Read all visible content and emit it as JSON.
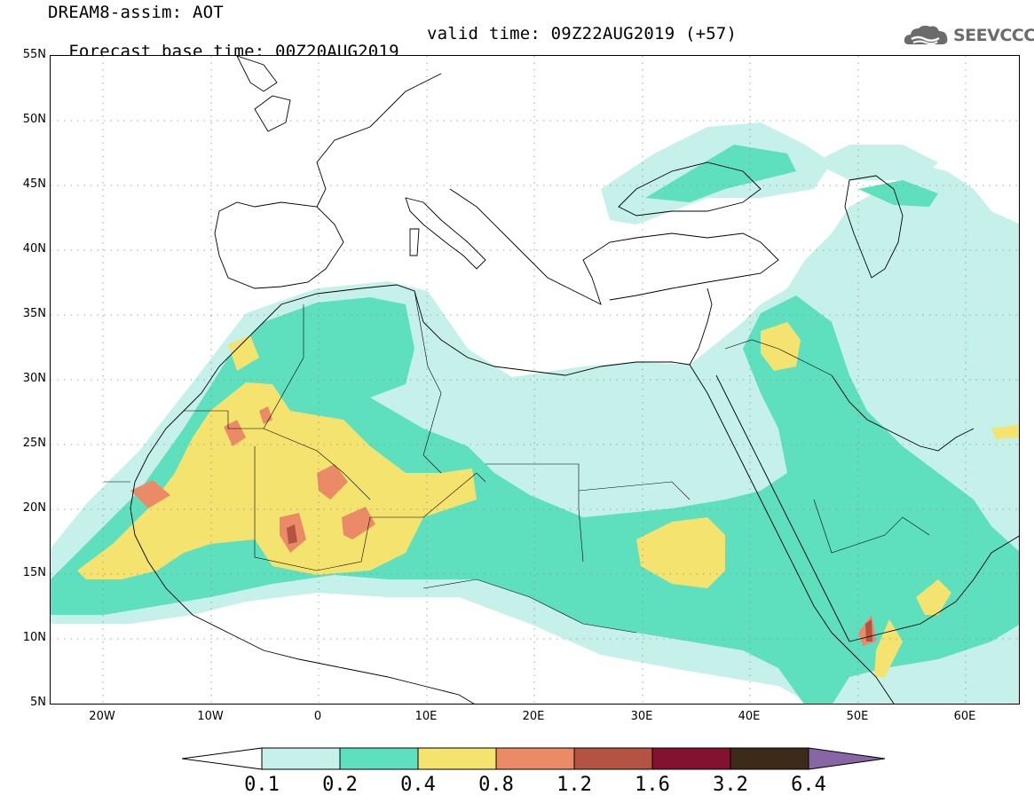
{
  "header": {
    "title": "DREAM8-assim: AOT",
    "base_time": "Forecast base time: 00Z20AUG2019",
    "valid_time": "valid time: 09Z22AUG2019 (+57)"
  },
  "logo": {
    "text": "SEEVCCC",
    "icon": "cloud-icon",
    "color": "#6b6b6b"
  },
  "map": {
    "lat_labels": [
      "55N",
      "50N",
      "45N",
      "40N",
      "35N",
      "30N",
      "25N",
      "20N",
      "15N",
      "10N",
      "5N"
    ],
    "lon_labels": [
      "20W",
      "10W",
      "0",
      "10E",
      "20E",
      "30E",
      "40E",
      "50E",
      "60E"
    ],
    "gridlines": "dotted",
    "coastline_color": "#000000"
  },
  "colorbar": {
    "levels": [
      "0.1",
      "0.2",
      "0.4",
      "0.8",
      "1.2",
      "1.6",
      "3.2",
      "6.4"
    ],
    "colors": [
      "#ffffff",
      "#c5f1ea",
      "#5ee0bf",
      "#f4e36e",
      "#ea8a66",
      "#b45343",
      "#82122f",
      "#3d2a18",
      "#8866a6"
    ]
  }
}
